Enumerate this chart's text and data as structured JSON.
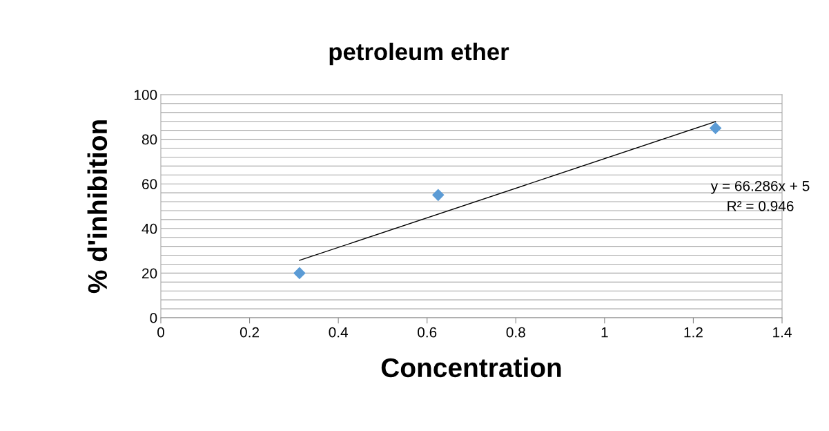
{
  "chart_data": {
    "type": "scatter",
    "title": "petroleum ether",
    "xlabel": "Concentration",
    "ylabel": "% d'inhibition",
    "series": [
      {
        "color": "#5b9bd5",
        "marker": "diamond",
        "x": [
          0.3125,
          0.625,
          1.25
        ],
        "values": [
          20,
          55,
          85
        ]
      },
      {
        "type": "line",
        "color": "#000000",
        "marker": "none",
        "line_style": "solid",
        "x": [
          0.3125,
          1.25
        ],
        "values": [
          25.7,
          87.9
        ]
      }
    ],
    "xlim": [
      0,
      1.4
    ],
    "xticks": [
      0,
      0.2,
      0.4,
      0.6,
      0.8,
      1,
      1.2,
      1.4
    ],
    "ylim": [
      0,
      100
    ],
    "yticks": [
      0,
      {
        "value": 4,
        "label": null
      },
      {
        "value": 8,
        "label": null
      },
      {
        "value": 12,
        "label": null
      },
      {
        "value": 16,
        "label": null
      },
      20,
      {
        "value": 24,
        "label": null
      },
      {
        "value": 28,
        "label": null
      },
      {
        "value": 32,
        "label": null
      },
      {
        "value": 36,
        "label": null
      },
      40,
      {
        "value": 44,
        "label": null
      },
      {
        "value": 48,
        "label": null
      },
      {
        "value": 52,
        "label": null
      },
      {
        "value": 56,
        "label": null
      },
      60,
      {
        "value": 64,
        "label": null
      },
      {
        "value": 68,
        "label": null
      },
      {
        "value": 72,
        "label": null
      },
      {
        "value": 76,
        "label": null
      },
      80,
      {
        "value": 84,
        "label": null
      },
      {
        "value": 88,
        "label": null
      },
      {
        "value": 92,
        "label": null
      },
      {
        "value": 96,
        "label": null
      },
      100
    ],
    "grid": "y",
    "legend": false,
    "annotations": [
      "y = 66.286x + 5",
      "R² = 0.946"
    ]
  }
}
